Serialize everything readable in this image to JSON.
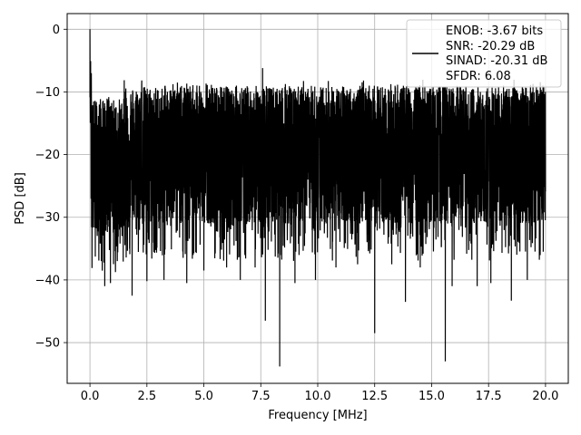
{
  "chart_data": {
    "type": "line",
    "title": "",
    "xlabel": "Frequency [MHz]",
    "ylabel": "PSD [dB]",
    "xlim": [
      -1.0,
      21.0
    ],
    "ylim": [
      -56.5,
      2.5
    ],
    "x_ticks": [
      0.0,
      2.5,
      5.0,
      7.5,
      10.0,
      12.5,
      15.0,
      17.5,
      20.0
    ],
    "x_tick_labels": [
      "0.0",
      "2.5",
      "5.0",
      "7.5",
      "10.0",
      "12.5",
      "15.0",
      "17.5",
      "20.0"
    ],
    "y_ticks": [
      0,
      -10,
      -20,
      -30,
      -40,
      -50
    ],
    "y_tick_labels": [
      "0",
      "−10",
      "−20",
      "−30",
      "−40",
      "−50"
    ],
    "grid": true,
    "legend_position": "top-right",
    "legend_lines": [
      "ENOB: -3.67 bits",
      "SNR: -20.29 dB",
      "SINAD: -20.31 dB",
      "SFDR: 6.08"
    ],
    "series": [
      {
        "color": "#000000",
        "x_range": [
          0.0,
          20.0
        ],
        "description": "Noise-like spectrum with 0 dB peak at DC, dense fluctuation between about -8 and -38 dB",
        "points": [
          [
            0.0,
            0.0
          ],
          [
            0.03,
            -14.0
          ],
          [
            0.06,
            -7.0
          ],
          [
            0.1,
            -27.0
          ],
          [
            0.5,
            -37.0
          ],
          [
            0.65,
            -41.0
          ],
          [
            0.9,
            -40.5
          ],
          [
            1.2,
            -37.0
          ],
          [
            1.85,
            -42.5
          ],
          [
            2.5,
            -40.2
          ],
          [
            3.25,
            -40.0
          ],
          [
            4.25,
            -40.5
          ],
          [
            5.0,
            -38.5
          ],
          [
            6.0,
            -38.0
          ],
          [
            6.6,
            -40.0
          ],
          [
            7.25,
            -38.0
          ],
          [
            7.58,
            -6.2
          ],
          [
            7.7,
            -46.5
          ],
          [
            8.33,
            -53.8
          ],
          [
            9.0,
            -40.5
          ],
          [
            9.9,
            -40.0
          ],
          [
            10.8,
            -38.0
          ],
          [
            11.75,
            -37.5
          ],
          [
            12.5,
            -48.5
          ],
          [
            13.25,
            -37.5
          ],
          [
            13.85,
            -43.5
          ],
          [
            14.5,
            -38.0
          ],
          [
            15.6,
            -53.0
          ],
          [
            15.9,
            -41.0
          ],
          [
            17.0,
            -41.0
          ],
          [
            17.6,
            -40.5
          ],
          [
            18.5,
            -43.3
          ],
          [
            19.2,
            -40.0
          ],
          [
            19.9,
            -35.5
          ],
          [
            20.0,
            -20.0
          ]
        ]
      }
    ]
  }
}
